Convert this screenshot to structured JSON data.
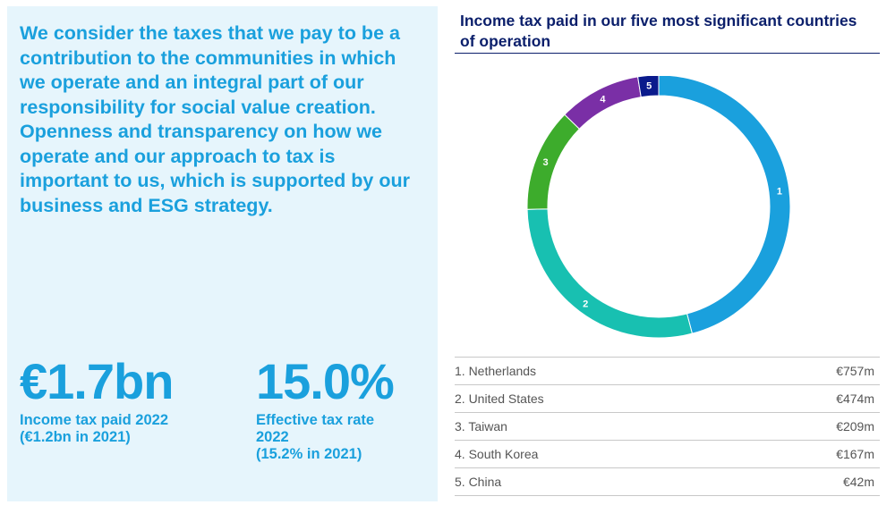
{
  "statement": "We consider the taxes that we pay to be a contribution to the communities in which we operate and an integral part of our responsibility for social value creation. Openness and transparency on how we operate and our approach to tax is important to us, which is supported by our business and ESG strategy.",
  "stats": [
    {
      "value": "€1.7bn",
      "label": "Income tax paid 2022",
      "sub": "(€1.2bn in 2021)"
    },
    {
      "value": "15.0%",
      "label": "Effective tax rate 2022",
      "sub": "(15.2% in 2021)"
    }
  ],
  "chart_data": {
    "type": "pie",
    "title": "Income tax paid in our five most significant countries of operation",
    "categories": [
      "Netherlands",
      "United States",
      "Taiwan",
      "South Korea",
      "China"
    ],
    "values": [
      757,
      474,
      209,
      167,
      42
    ],
    "unit": "€m",
    "slice_labels": [
      "1",
      "2",
      "3",
      "4",
      "5"
    ],
    "colors": [
      "#1aa0dd",
      "#18c0b1",
      "#3dac2c",
      "#7a2fa6",
      "#0a1a8c"
    ],
    "legend": [
      {
        "label": "1. Netherlands",
        "value": "€757m"
      },
      {
        "label": "2. United States",
        "value": "€474m"
      },
      {
        "label": "3. Taiwan",
        "value": "€209m"
      },
      {
        "label": "4. South Korea",
        "value": "€167m"
      },
      {
        "label": "5. China",
        "value": "€42m"
      }
    ],
    "legend_placement": "bottom",
    "grid": false
  }
}
